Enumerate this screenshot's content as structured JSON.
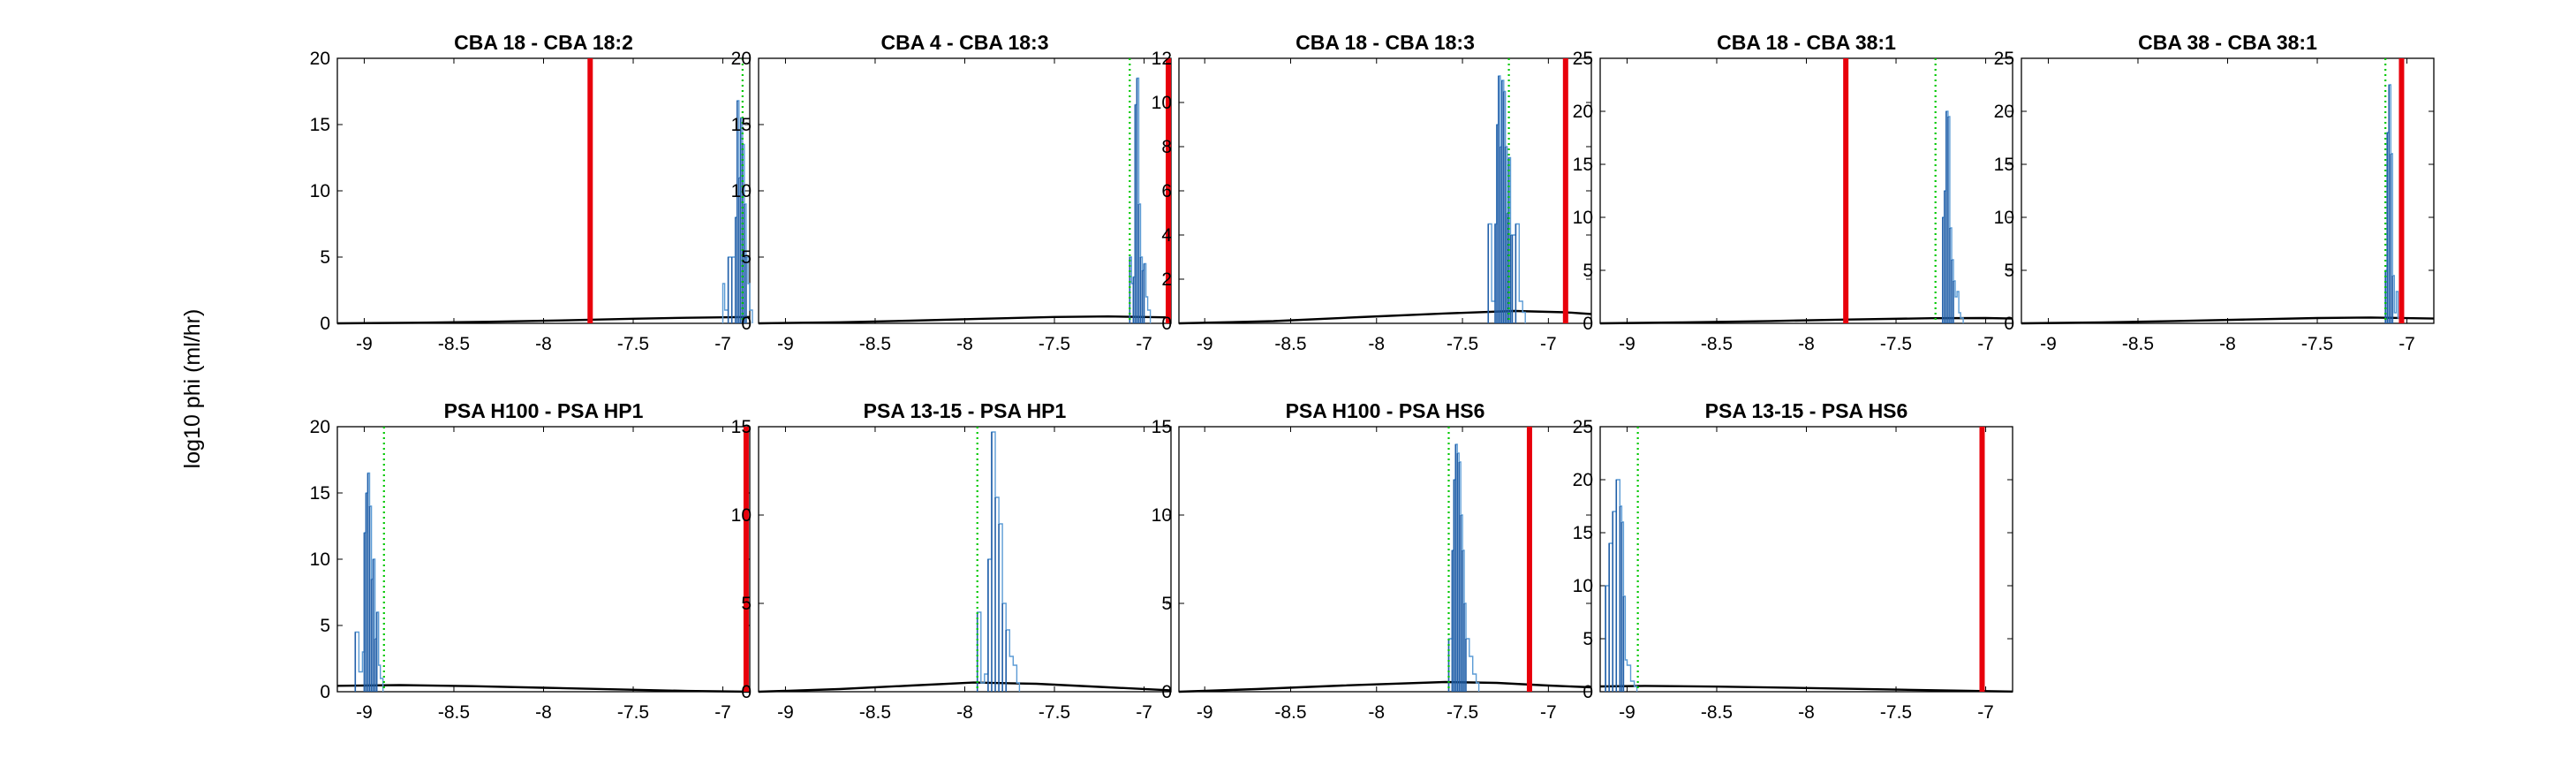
{
  "figure": {
    "ylabel": "log10 phi (ml/hr)"
  },
  "colors": {
    "histogram": "#5b9bd5",
    "histogram_dark": "#1f5ea8",
    "observed_line": "#e8000b",
    "mean_line": "#00c800",
    "prior_curve": "#000000",
    "axes": "#000000"
  },
  "chart_data": [
    {
      "type": "histogram",
      "title": "CBA 18 - CBA 18:2",
      "x_ticks": [
        "-9",
        "-8.5",
        "-8",
        "-7.5",
        "-7"
      ],
      "x_tick_values": [
        -9,
        -8.5,
        -8,
        -7.5,
        -7
      ],
      "xlim": [
        -9.15,
        -6.85
      ],
      "ylim": [
        0,
        20
      ],
      "y_ticks": [
        0,
        5,
        10,
        15,
        20
      ],
      "observed_value": -7.74,
      "mean_value": -6.89,
      "histogram": {
        "x": [
          -7.0,
          -6.99,
          -6.97,
          -6.95,
          -6.93,
          -6.92,
          -6.91,
          -6.9,
          -6.89,
          -6.88,
          -6.87,
          -6.86,
          -6.85
        ],
        "y": [
          3,
          1,
          5,
          5,
          8,
          16.8,
          11,
          15.5,
          13.5,
          9,
          5,
          3,
          1
        ]
      },
      "prior_curve": {
        "x": [
          -9.15,
          -8.7,
          -8.3,
          -7.9,
          -7.5,
          -7.2,
          -6.85
        ],
        "y": [
          0,
          0.05,
          0.12,
          0.22,
          0.35,
          0.42,
          0.48
        ]
      }
    },
    {
      "type": "histogram",
      "title": "CBA 4 - CBA 18:3",
      "x_ticks": [
        "-9",
        "-8.5",
        "-8",
        "-7.5",
        "-7"
      ],
      "x_tick_values": [
        -9,
        -8.5,
        -8,
        -7.5,
        -7
      ],
      "xlim": [
        -9.15,
        -6.85
      ],
      "ylim": [
        0,
        20
      ],
      "y_ticks": [
        0,
        5,
        10,
        15,
        20
      ],
      "observed_value": -6.85,
      "mean_value": -7.08,
      "histogram": {
        "x": [
          -7.08,
          -7.07,
          -7.06,
          -7.05,
          -7.04,
          -7.03,
          -7.02,
          -7.01,
          -7.0,
          -6.99,
          -6.98
        ],
        "y": [
          5,
          3,
          3.5,
          16.5,
          18.5,
          9,
          5,
          4,
          4.5,
          2,
          1
        ]
      },
      "prior_curve": {
        "x": [
          -9.15,
          -8.7,
          -8.3,
          -7.9,
          -7.5,
          -7.2,
          -6.85
        ],
        "y": [
          0,
          0.08,
          0.2,
          0.35,
          0.48,
          0.52,
          0.45
        ]
      }
    },
    {
      "type": "histogram",
      "title": "CBA 18 - CBA 18:3",
      "x_ticks": [
        "-9",
        "-8.5",
        "-8",
        "-7.5",
        "-7"
      ],
      "x_tick_values": [
        -9,
        -8.5,
        -8,
        -7.5,
        -7
      ],
      "xlim": [
        -9.15,
        -6.75
      ],
      "ylim": [
        0,
        12
      ],
      "y_ticks": [
        0,
        2,
        4,
        6,
        8,
        10,
        12
      ],
      "observed_value": -6.9,
      "mean_value": -7.23,
      "histogram": {
        "x": [
          -7.35,
          -7.33,
          -7.31,
          -7.3,
          -7.29,
          -7.28,
          -7.27,
          -7.26,
          -7.25,
          -7.24,
          -7.23,
          -7.22,
          -7.21,
          -7.19,
          -7.17,
          -7.15
        ],
        "y": [
          4.5,
          1,
          4.5,
          9,
          11.2,
          8,
          11,
          10.5,
          8,
          5,
          7.5,
          4,
          4,
          4.5,
          1,
          0.5
        ]
      },
      "prior_curve": {
        "x": [
          -9.15,
          -8.6,
          -8.1,
          -7.6,
          -7.2,
          -6.9,
          -6.75
        ],
        "y": [
          0,
          0.1,
          0.28,
          0.45,
          0.56,
          0.5,
          0.42
        ]
      }
    },
    {
      "type": "histogram",
      "title": "CBA 18 - CBA 38:1",
      "x_ticks": [
        "-9",
        "-8.5",
        "-8",
        "-7.5",
        "-7"
      ],
      "x_tick_values": [
        -9,
        -8.5,
        -8,
        -7.5,
        -7
      ],
      "xlim": [
        -9.15,
        -6.85
      ],
      "ylim": [
        0,
        25
      ],
      "y_ticks": [
        0,
        5,
        10,
        15,
        20,
        25
      ],
      "observed_value": -7.78,
      "mean_value": -7.28,
      "histogram": {
        "x": [
          -7.24,
          -7.23,
          -7.22,
          -7.21,
          -7.2,
          -7.19,
          -7.18,
          -7.17,
          -7.16,
          -7.15,
          -7.14
        ],
        "y": [
          10,
          12.5,
          20,
          19.5,
          9,
          6,
          4,
          2.5,
          3,
          1,
          0.5
        ]
      },
      "prior_curve": {
        "x": [
          -9.15,
          -8.7,
          -8.2,
          -7.8,
          -7.3,
          -7.0,
          -6.85
        ],
        "y": [
          0,
          0.08,
          0.22,
          0.35,
          0.48,
          0.5,
          0.45
        ]
      }
    },
    {
      "type": "histogram",
      "title": "CBA 38 - CBA 38:1",
      "x_ticks": [
        "-9",
        "-8.5",
        "-8",
        "-7.5",
        "-7"
      ],
      "x_tick_values": [
        -9,
        -8.5,
        -8,
        -7.5,
        -7
      ],
      "xlim": [
        -9.15,
        -6.85
      ],
      "ylim": [
        0,
        25
      ],
      "y_ticks": [
        0,
        5,
        10,
        15,
        20,
        25
      ],
      "observed_value": -7.03,
      "mean_value": -7.12,
      "histogram": {
        "x": [
          -7.12,
          -7.11,
          -7.1,
          -7.09,
          -7.08,
          -7.07,
          -7.06,
          -7.05
        ],
        "y": [
          5,
          18,
          22.5,
          16,
          4.5,
          1,
          3,
          0.5
        ]
      },
      "prior_curve": {
        "x": [
          -9.15,
          -8.7,
          -8.3,
          -7.9,
          -7.5,
          -7.2,
          -6.85
        ],
        "y": [
          0,
          0.08,
          0.22,
          0.36,
          0.5,
          0.55,
          0.45
        ]
      }
    },
    {
      "type": "histogram",
      "title": "PSA H100 - PSA HP1",
      "x_ticks": [
        "-9",
        "-8.5",
        "-8",
        "-7.5",
        "-7"
      ],
      "x_tick_values": [
        -9,
        -8.5,
        -8,
        -7.5,
        -7
      ],
      "xlim": [
        -9.15,
        -6.85
      ],
      "ylim": [
        0,
        20
      ],
      "y_ticks": [
        0,
        5,
        10,
        15,
        20
      ],
      "observed_value": -6.87,
      "mean_value": -8.89,
      "histogram": {
        "x": [
          -9.05,
          -9.03,
          -9.01,
          -9.0,
          -8.99,
          -8.98,
          -8.97,
          -8.96,
          -8.95,
          -8.94,
          -8.93,
          -8.92,
          -8.91
        ],
        "y": [
          4.5,
          1.5,
          3,
          12,
          15,
          16.5,
          14,
          8.5,
          10,
          4,
          6,
          2,
          1
        ]
      },
      "prior_curve": {
        "x": [
          -9.15,
          -8.8,
          -8.4,
          -8.0,
          -7.6,
          -7.2,
          -6.85
        ],
        "y": [
          0.45,
          0.5,
          0.42,
          0.3,
          0.18,
          0.06,
          0
        ]
      }
    },
    {
      "type": "histogram",
      "title": "PSA 13-15 - PSA HP1",
      "x_ticks": [
        "-9",
        "-8.5",
        "-8",
        "-7.5",
        "-7"
      ],
      "x_tick_values": [
        -9,
        -8.5,
        -8,
        -7.5,
        -7
      ],
      "xlim": [
        -9.15,
        -6.85
      ],
      "ylim": [
        0,
        15
      ],
      "y_ticks": [
        0,
        5,
        10,
        15
      ],
      "observed_value": null,
      "mean_value": -7.93,
      "histogram": {
        "x": [
          -7.93,
          -7.91,
          -7.89,
          -7.87,
          -7.85,
          -7.83,
          -7.81,
          -7.79,
          -7.77,
          -7.75,
          -7.73,
          -7.71
        ],
        "y": [
          4.5,
          0.5,
          1,
          7.5,
          14.7,
          11,
          9.5,
          5,
          3.5,
          2,
          1.5,
          0.5
        ]
      },
      "prior_curve": {
        "x": [
          -9.15,
          -8.7,
          -8.3,
          -7.95,
          -7.6,
          -7.2,
          -6.85
        ],
        "y": [
          0,
          0.15,
          0.35,
          0.52,
          0.45,
          0.25,
          0.08
        ]
      }
    },
    {
      "type": "histogram",
      "title": "PSA H100 - PSA HS6",
      "x_ticks": [
        "-9",
        "-8.5",
        "-8",
        "-7.5",
        "-7"
      ],
      "x_tick_values": [
        -9,
        -8.5,
        -8,
        -7.5,
        -7
      ],
      "xlim": [
        -9.15,
        -6.75
      ],
      "ylim": [
        0,
        15
      ],
      "y_ticks": [
        0,
        5,
        10,
        15
      ],
      "observed_value": -7.11,
      "mean_value": -7.58,
      "histogram": {
        "x": [
          -7.58,
          -7.56,
          -7.55,
          -7.54,
          -7.53,
          -7.52,
          -7.51,
          -7.5,
          -7.49,
          -7.48,
          -7.46,
          -7.44,
          -7.42
        ],
        "y": [
          3,
          8,
          12,
          14,
          13.5,
          13,
          10,
          8,
          5,
          3,
          2,
          1,
          0.5
        ]
      },
      "prior_curve": {
        "x": [
          -9.15,
          -8.7,
          -8.2,
          -7.6,
          -7.3,
          -7.0,
          -6.75
        ],
        "y": [
          0,
          0.15,
          0.35,
          0.55,
          0.5,
          0.35,
          0.25
        ]
      }
    },
    {
      "type": "histogram",
      "title": "PSA 13-15 - PSA HS6",
      "x_ticks": [
        "-9",
        "-8.5",
        "-8",
        "-7.5",
        "-7"
      ],
      "x_tick_values": [
        -9,
        -8.5,
        -8,
        -7.5,
        -7
      ],
      "xlim": [
        -9.15,
        -6.85
      ],
      "ylim": [
        0,
        25
      ],
      "y_ticks": [
        0,
        5,
        10,
        15,
        20,
        25
      ],
      "observed_value": -7.02,
      "mean_value": -8.94,
      "histogram": {
        "x": [
          -9.12,
          -9.1,
          -9.08,
          -9.06,
          -9.04,
          -9.03,
          -9.02,
          -9.01,
          -9.0,
          -8.98,
          -8.96
        ],
        "y": [
          10,
          14,
          17,
          20,
          17.5,
          16,
          9,
          3,
          2.5,
          1,
          0.5
        ]
      },
      "prior_curve": {
        "x": [
          -9.15,
          -8.9,
          -8.5,
          -8.0,
          -7.5,
          -7.1,
          -6.85
        ],
        "y": [
          0.5,
          0.55,
          0.48,
          0.35,
          0.2,
          0.08,
          0.02
        ]
      }
    }
  ]
}
